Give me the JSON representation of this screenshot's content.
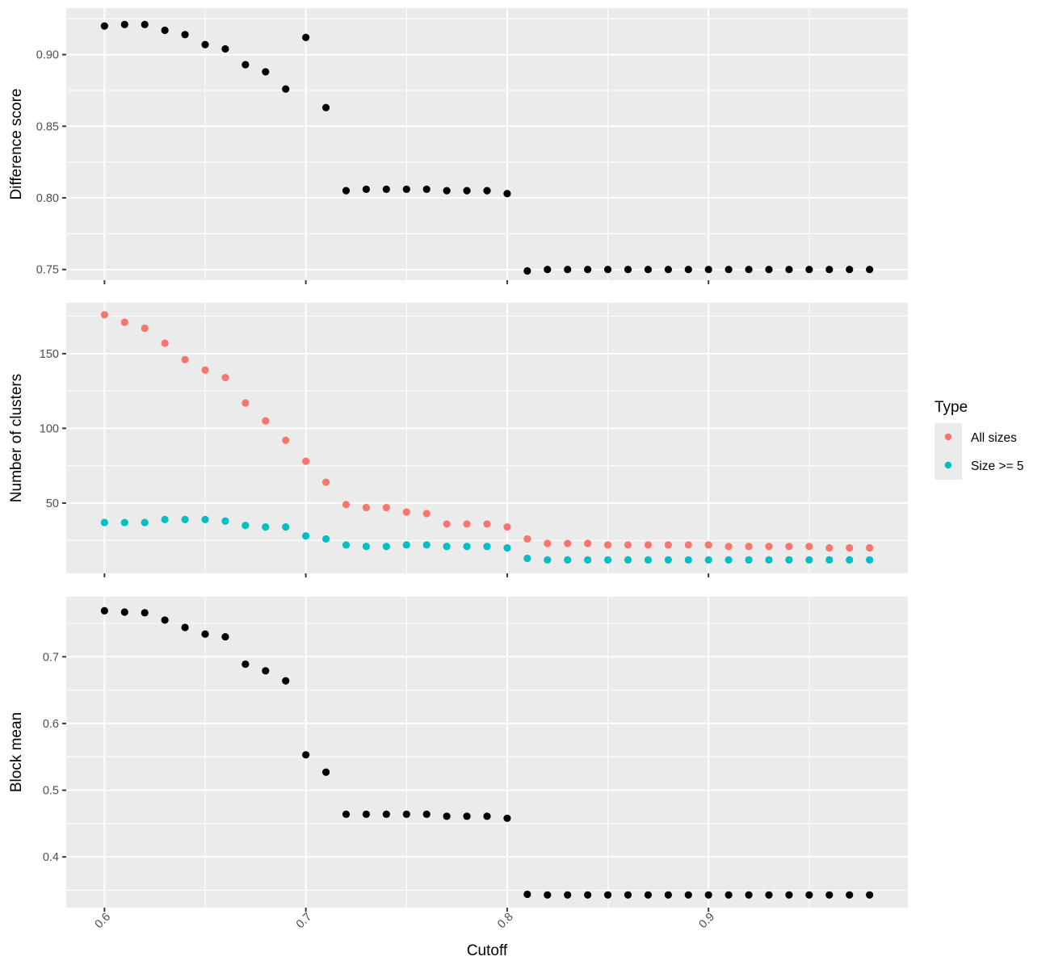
{
  "chart_data": [
    {
      "type": "scatter",
      "ylabel": "Difference score",
      "ylim": [
        0.7425,
        0.9325
      ],
      "yticks": [
        0.75,
        0.8,
        0.85,
        0.9
      ],
      "ytick_labels": [
        "0.75",
        "0.80",
        "0.85",
        "0.90"
      ],
      "series": [
        {
          "color": "#000000",
          "x": [
            0.6,
            0.61,
            0.62,
            0.63,
            0.64,
            0.65,
            0.66,
            0.67,
            0.68,
            0.69,
            0.7,
            0.71,
            0.72,
            0.73,
            0.74,
            0.75,
            0.76,
            0.77,
            0.78,
            0.79,
            0.8,
            0.81,
            0.82,
            0.83,
            0.84,
            0.85,
            0.86,
            0.87,
            0.88,
            0.89,
            0.9,
            0.91,
            0.92,
            0.93,
            0.94,
            0.95,
            0.96,
            0.97,
            0.98
          ],
          "y": [
            0.92,
            0.921,
            0.921,
            0.917,
            0.914,
            0.907,
            0.904,
            0.893,
            0.888,
            0.876,
            0.912,
            0.863,
            0.805,
            0.806,
            0.806,
            0.806,
            0.806,
            0.805,
            0.805,
            0.805,
            0.803,
            0.749,
            0.75,
            0.75,
            0.75,
            0.75,
            0.75,
            0.75,
            0.75,
            0.75,
            0.75,
            0.75,
            0.75,
            0.75,
            0.75,
            0.75,
            0.75,
            0.75,
            0.75
          ]
        }
      ]
    },
    {
      "type": "scatter",
      "ylabel": "Number of clusters",
      "ylim": [
        3,
        184
      ],
      "yticks": [
        50,
        100,
        150
      ],
      "ytick_labels": [
        "50",
        "100",
        "150"
      ],
      "legend": {
        "title": "Type",
        "position": "right"
      },
      "series": [
        {
          "name": "All sizes",
          "color": "#f8766d",
          "x": [
            0.6,
            0.61,
            0.62,
            0.63,
            0.64,
            0.65,
            0.66,
            0.67,
            0.68,
            0.69,
            0.7,
            0.71,
            0.72,
            0.73,
            0.74,
            0.75,
            0.76,
            0.77,
            0.78,
            0.79,
            0.8,
            0.81,
            0.82,
            0.83,
            0.84,
            0.85,
            0.86,
            0.87,
            0.88,
            0.89,
            0.9,
            0.91,
            0.92,
            0.93,
            0.94,
            0.95,
            0.96,
            0.97,
            0.98
          ],
          "y": [
            176,
            171,
            167,
            157,
            146,
            139,
            134,
            117,
            105,
            92,
            78,
            64,
            49,
            47,
            47,
            44,
            43,
            36,
            36,
            36,
            34,
            26,
            23,
            23,
            23,
            22,
            22,
            22,
            22,
            22,
            22,
            21,
            21,
            21,
            21,
            21,
            20,
            20,
            20
          ]
        },
        {
          "name": "Size >= 5",
          "color": "#00bfc4",
          "x": [
            0.6,
            0.61,
            0.62,
            0.63,
            0.64,
            0.65,
            0.66,
            0.67,
            0.68,
            0.69,
            0.7,
            0.71,
            0.72,
            0.73,
            0.74,
            0.75,
            0.76,
            0.77,
            0.78,
            0.79,
            0.8,
            0.81,
            0.82,
            0.83,
            0.84,
            0.85,
            0.86,
            0.87,
            0.88,
            0.89,
            0.9,
            0.91,
            0.92,
            0.93,
            0.94,
            0.95,
            0.96,
            0.97,
            0.98
          ],
          "y": [
            37,
            37,
            37,
            39,
            39,
            39,
            38,
            35,
            34,
            34,
            28,
            26,
            22,
            21,
            21,
            22,
            22,
            21,
            21,
            21,
            20,
            13,
            12,
            12,
            12,
            12,
            12,
            12,
            12,
            12,
            12,
            12,
            12,
            12,
            12,
            12,
            12,
            12,
            12
          ]
        }
      ]
    },
    {
      "type": "scatter",
      "ylabel": "Block mean",
      "xlabel": "Cutoff",
      "ylim": [
        0.324,
        0.79
      ],
      "yticks": [
        0.4,
        0.5,
        0.6,
        0.7
      ],
      "ytick_labels": [
        "0.4",
        "0.5",
        "0.6",
        "0.7"
      ],
      "series": [
        {
          "color": "#000000",
          "x": [
            0.6,
            0.61,
            0.62,
            0.63,
            0.64,
            0.65,
            0.66,
            0.67,
            0.68,
            0.69,
            0.7,
            0.71,
            0.72,
            0.73,
            0.74,
            0.75,
            0.76,
            0.77,
            0.78,
            0.79,
            0.8,
            0.81,
            0.82,
            0.83,
            0.84,
            0.85,
            0.86,
            0.87,
            0.88,
            0.89,
            0.9,
            0.91,
            0.92,
            0.93,
            0.94,
            0.95,
            0.96,
            0.97,
            0.98
          ],
          "y": [
            0.769,
            0.767,
            0.766,
            0.755,
            0.744,
            0.734,
            0.73,
            0.689,
            0.679,
            0.664,
            0.553,
            0.527,
            0.464,
            0.464,
            0.464,
            0.464,
            0.464,
            0.461,
            0.461,
            0.461,
            0.458,
            0.344,
            0.343,
            0.343,
            0.343,
            0.343,
            0.343,
            0.343,
            0.343,
            0.343,
            0.343,
            0.343,
            0.343,
            0.343,
            0.343,
            0.343,
            0.343,
            0.343,
            0.343
          ]
        }
      ]
    }
  ],
  "shared_x": {
    "xlabel": "Cutoff",
    "xlim": [
      0.581,
      0.999
    ],
    "xticks": [
      0.6,
      0.7,
      0.8,
      0.9
    ],
    "xtick_labels": [
      "0.6",
      "0.7",
      "0.8",
      "0.9"
    ],
    "xtick_label_rotation": -45
  },
  "legend": {
    "title": "Type",
    "entries": [
      {
        "label": "All sizes",
        "color": "#f8766d"
      },
      {
        "label": "Size >= 5",
        "color": "#00bfc4"
      }
    ]
  }
}
